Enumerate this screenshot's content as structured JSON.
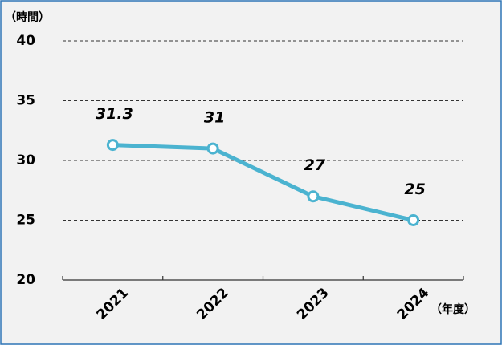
{
  "chart_data": {
    "type": "line",
    "y_axis_label": "（時間）",
    "x_axis_label": "（年度）",
    "categories": [
      "2021",
      "2022",
      "2023",
      "2024"
    ],
    "series": [
      {
        "name": "時間",
        "color": "#4bb3d0",
        "values": [
          31.3,
          31,
          27,
          25
        ]
      }
    ],
    "ylim": [
      20,
      40
    ],
    "yticks": [
      20,
      25,
      30,
      35,
      40
    ],
    "grid": true
  }
}
